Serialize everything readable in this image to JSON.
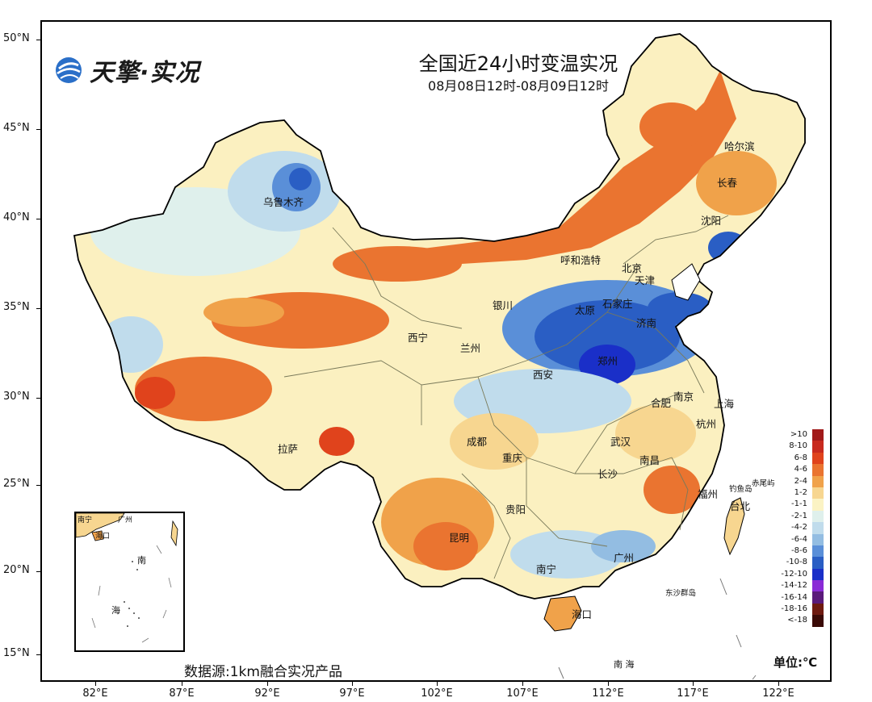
{
  "header": {
    "title": "全国近24小时变温实况",
    "subtitle": "08月08日12时-08月09日12时"
  },
  "brand": {
    "logo_text": "天擎·实况",
    "icon": "globe-icon"
  },
  "source": "数据源:1km融合实况产品",
  "axes": {
    "lat_labels": [
      "50°N",
      "45°N",
      "40°N",
      "35°N",
      "30°N",
      "25°N",
      "20°N",
      "15°N"
    ],
    "lon_labels": [
      "82°E",
      "87°E",
      "92°E",
      "97°E",
      "102°E",
      "107°E",
      "112°E",
      "117°E",
      "122°E"
    ]
  },
  "legend": {
    "unit": "单位:℃",
    "labels": [
      ">10",
      "8-10",
      "6-8",
      "4-6",
      "2-4",
      "1-2",
      "-1-1",
      "-2-1",
      "-4-2",
      "-6-4",
      "-8-6",
      "-10-8",
      "-12-10",
      "-14-12",
      "-16-14",
      "-18-16",
      "<-18"
    ],
    "colors": [
      "#a11a1a",
      "#c82a1e",
      "#e0431c",
      "#ea7430",
      "#f0a24a",
      "#f7d690",
      "#fbf3c4",
      "#dff0ec",
      "#c0dcec",
      "#93bde2",
      "#5a8fd8",
      "#2a5ec4",
      "#1a2fc8",
      "#8a2bd6",
      "#5a1a7a",
      "#6e1a10",
      "#3a0a06"
    ]
  },
  "cities": [
    {
      "name": "乌鲁木齐"
    },
    {
      "name": "哈尔滨"
    },
    {
      "name": "长春"
    },
    {
      "name": "沈阳"
    },
    {
      "name": "呼和浩特"
    },
    {
      "name": "北京"
    },
    {
      "name": "天津"
    },
    {
      "name": "银川"
    },
    {
      "name": "太原"
    },
    {
      "name": "石家庄"
    },
    {
      "name": "济南"
    },
    {
      "name": "西宁"
    },
    {
      "name": "兰州"
    },
    {
      "name": "郑州"
    },
    {
      "name": "西安"
    },
    {
      "name": "南京"
    },
    {
      "name": "合肥"
    },
    {
      "name": "上海"
    },
    {
      "name": "杭州"
    },
    {
      "name": "成都"
    },
    {
      "name": "武汉"
    },
    {
      "name": "拉萨"
    },
    {
      "name": "重庆"
    },
    {
      "name": "南昌"
    },
    {
      "name": "长沙"
    },
    {
      "name": "福州"
    },
    {
      "name": "贵阳"
    },
    {
      "name": "台北"
    },
    {
      "name": "昆明"
    },
    {
      "name": "广州"
    },
    {
      "name": "南宁"
    },
    {
      "name": "海口"
    }
  ],
  "islands": {
    "diaoyu": "钓鱼岛",
    "chiwei": "赤尾屿",
    "dongsha": "东沙群岛",
    "nanhai": "南 海"
  },
  "inset": {
    "nanning": "南宁",
    "guangzhou": "广州",
    "haikou": "海口",
    "nan": "南",
    "hai": "海"
  }
}
